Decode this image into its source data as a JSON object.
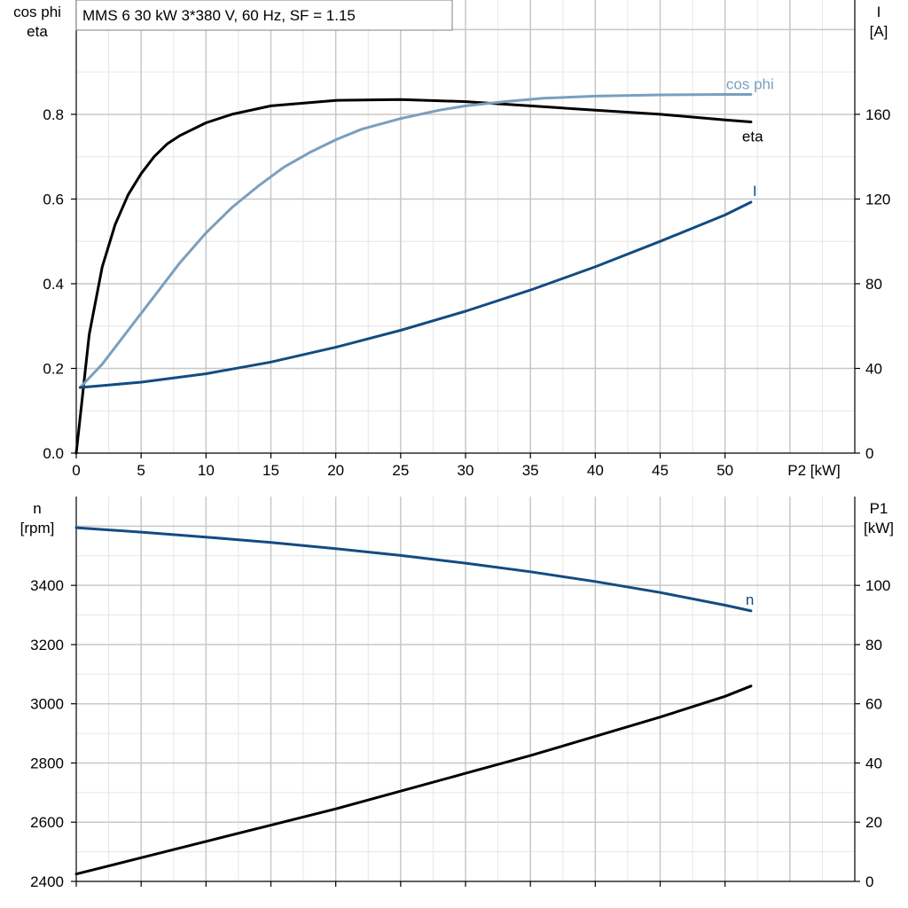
{
  "title": "MMS 6   30 kW   3*380 V, 60 Hz, SF = 1.15",
  "chart_data": [
    {
      "type": "line",
      "id": "top",
      "xlabel": "P2 [kW]",
      "xlim": [
        0,
        60
      ],
      "x_ticks": [
        0,
        5,
        10,
        15,
        20,
        25,
        30,
        35,
        40,
        45,
        50
      ],
      "left_axis_label": [
        "cos phi",
        "eta"
      ],
      "ylim_left": [
        0,
        1.07
      ],
      "y_ticks_left": [
        "0.0",
        "0.2",
        "0.4",
        "0.6",
        "0.8"
      ],
      "right_axis_label": [
        "I",
        "[A]"
      ],
      "ylim_right": [
        0,
        214
      ],
      "y_ticks_right": [
        "0",
        "40",
        "80",
        "120",
        "160"
      ],
      "series": [
        {
          "name": "eta",
          "axis": "left",
          "color": "#000000",
          "points": [
            [
              0,
              0
            ],
            [
              0.5,
              0.14
            ],
            [
              1,
              0.28
            ],
            [
              2,
              0.44
            ],
            [
              3,
              0.54
            ],
            [
              4,
              0.61
            ],
            [
              5,
              0.66
            ],
            [
              6,
              0.7
            ],
            [
              7,
              0.73
            ],
            [
              8,
              0.75
            ],
            [
              10,
              0.78
            ],
            [
              12,
              0.8
            ],
            [
              15,
              0.82
            ],
            [
              20,
              0.833
            ],
            [
              25,
              0.835
            ],
            [
              30,
              0.83
            ],
            [
              35,
              0.82
            ],
            [
              40,
              0.81
            ],
            [
              45,
              0.8
            ],
            [
              50,
              0.787
            ],
            [
              52,
              0.782
            ]
          ]
        },
        {
          "name": "cos phi",
          "axis": "left",
          "color": "#7a9fbe",
          "points": [
            [
              0.3,
              0.155
            ],
            [
              2,
              0.21
            ],
            [
              4,
              0.29
            ],
            [
              6,
              0.37
            ],
            [
              8,
              0.45
            ],
            [
              10,
              0.52
            ],
            [
              12,
              0.58
            ],
            [
              14,
              0.63
            ],
            [
              16,
              0.675
            ],
            [
              18,
              0.71
            ],
            [
              20,
              0.74
            ],
            [
              22,
              0.765
            ],
            [
              25,
              0.79
            ],
            [
              28,
              0.81
            ],
            [
              30,
              0.82
            ],
            [
              33,
              0.83
            ],
            [
              36,
              0.838
            ],
            [
              40,
              0.843
            ],
            [
              45,
              0.846
            ],
            [
              50,
              0.847
            ],
            [
              52,
              0.847
            ]
          ]
        },
        {
          "name": "I",
          "axis": "right",
          "color": "#134c80",
          "points": [
            [
              0.3,
              31
            ],
            [
              5,
              33.5
            ],
            [
              10,
              37.5
            ],
            [
              15,
              43
            ],
            [
              20,
              50
            ],
            [
              25,
              58
            ],
            [
              30,
              67
            ],
            [
              35,
              77
            ],
            [
              40,
              88
            ],
            [
              45,
              100
            ],
            [
              50,
              112.5
            ],
            [
              52,
              118.5
            ]
          ]
        }
      ]
    },
    {
      "type": "line",
      "id": "bottom",
      "xlim": [
        0,
        60
      ],
      "x_ticks": [
        0,
        5,
        10,
        15,
        20,
        25,
        30,
        35,
        40,
        45,
        50
      ],
      "left_axis_label": [
        "n",
        "[rpm]"
      ],
      "ylim_left": [
        2400,
        3700
      ],
      "y_ticks_left": [
        "2400",
        "2600",
        "2800",
        "3000",
        "3200",
        "3400"
      ],
      "right_axis_label": [
        "P1",
        "[kW]"
      ],
      "ylim_right": [
        0,
        130
      ],
      "y_ticks_right": [
        "0",
        "20",
        "40",
        "60",
        "80",
        "100"
      ],
      "series": [
        {
          "name": "n",
          "axis": "left",
          "color": "#134c80",
          "points": [
            [
              0,
              3595
            ],
            [
              5,
              3580
            ],
            [
              10,
              3563
            ],
            [
              15,
              3545
            ],
            [
              20,
              3524
            ],
            [
              25,
              3501
            ],
            [
              30,
              3475
            ],
            [
              35,
              3446
            ],
            [
              40,
              3413
            ],
            [
              45,
              3376
            ],
            [
              50,
              3333
            ],
            [
              52,
              3314
            ]
          ]
        },
        {
          "name": "P1",
          "axis": "right",
          "color": "#000000",
          "label_shown": false,
          "points": [
            [
              0,
              2.5
            ],
            [
              5,
              8
            ],
            [
              10,
              13.5
            ],
            [
              15,
              19
            ],
            [
              20,
              24.5
            ],
            [
              25,
              30.5
            ],
            [
              30,
              36.5
            ],
            [
              35,
              42.5
            ],
            [
              40,
              49
            ],
            [
              45,
              55.5
            ],
            [
              50,
              62.5
            ],
            [
              52,
              66
            ]
          ]
        }
      ]
    }
  ]
}
